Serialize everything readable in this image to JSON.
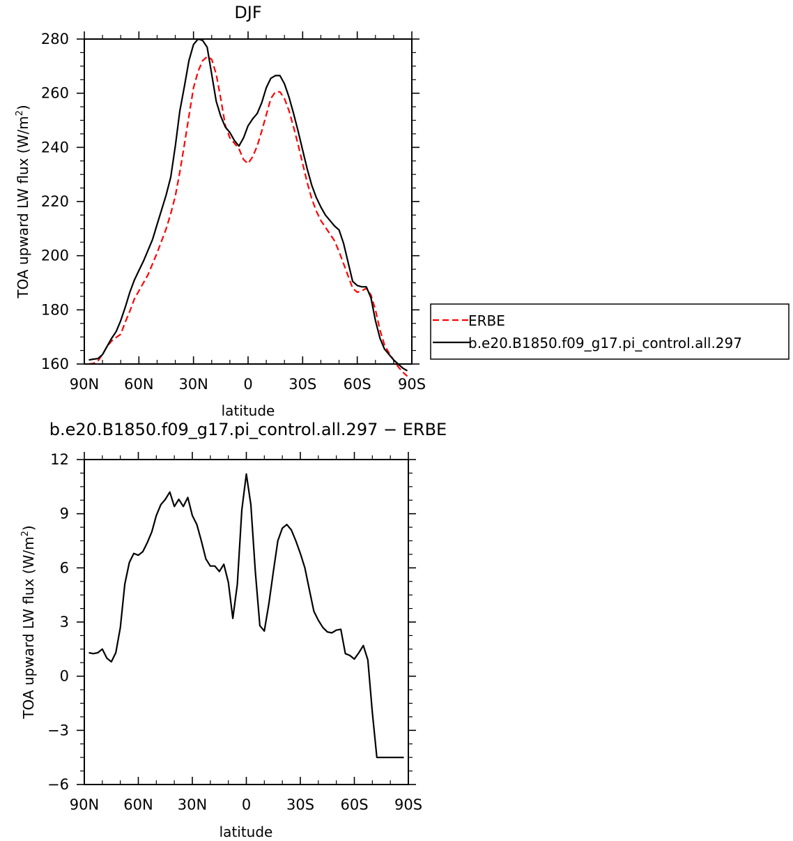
{
  "chart_data": [
    {
      "type": "line",
      "title": "DJF",
      "xlabel": "latitude",
      "ylabel": "TOA upward LW flux (W/m",
      "ylabel_sup": "2",
      "ylabel_tail": ")",
      "xlim": [
        90,
        -90
      ],
      "ylim": [
        160,
        280
      ],
      "xticks": [
        {
          "value": 90,
          "label": "90N"
        },
        {
          "value": 60,
          "label": "60N"
        },
        {
          "value": 30,
          "label": "30N"
        },
        {
          "value": 0,
          "label": "0"
        },
        {
          "value": -30,
          "label": "30S"
        },
        {
          "value": -60,
          "label": "60S"
        },
        {
          "value": -90,
          "label": "90S"
        }
      ],
      "yticks": [
        160,
        180,
        200,
        220,
        240,
        260,
        280
      ],
      "legend": {
        "placement": "right"
      },
      "series": [
        {
          "name": "ERBE",
          "color": "#ff0000",
          "dash": true,
          "x": [
            87.5,
            85,
            82.5,
            80,
            77.5,
            75,
            72.5,
            70,
            67.5,
            65,
            62.5,
            60,
            57.5,
            55,
            52.5,
            50,
            47.5,
            45,
            42.5,
            40,
            37.5,
            35,
            32.5,
            30,
            27.5,
            25,
            22.5,
            20,
            17.5,
            15,
            12.5,
            10,
            7.5,
            5,
            2.5,
            0,
            -2.5,
            -5,
            -7.5,
            -10,
            -12.5,
            -15,
            -17.5,
            -20,
            -22.5,
            -25,
            -27.5,
            -30,
            -32.5,
            -35,
            -37.5,
            -40,
            -42.5,
            -45,
            -47.5,
            -50,
            -52.5,
            -55,
            -57.5,
            -60,
            -62.5,
            -65,
            -67.5,
            -70,
            -72.5,
            -75,
            -77.5,
            -80,
            -82.5,
            -85,
            -87.5
          ],
          "values": [
            160.0,
            160.2,
            161.2,
            163.5,
            166.5,
            168.5,
            169.8,
            171.0,
            175.5,
            179.5,
            184.0,
            187.0,
            190.0,
            193.0,
            197.0,
            201.0,
            205.5,
            210.0,
            215.5,
            222.0,
            231.0,
            241.0,
            251.5,
            262.0,
            268.0,
            272.0,
            273.5,
            272.5,
            267.0,
            258.0,
            248.0,
            243.5,
            241.5,
            239.5,
            235.5,
            234.0,
            236.5,
            240.5,
            246.0,
            252.0,
            258.0,
            260.5,
            260.5,
            258.0,
            253.5,
            247.5,
            241.0,
            234.0,
            227.0,
            221.0,
            216.5,
            213.0,
            210.5,
            208.0,
            205.5,
            201.5,
            197.0,
            192.5,
            188.0,
            186.5,
            187.0,
            188.0,
            185.5,
            180.0,
            172.5,
            167.0,
            164.0,
            161.5,
            159.0,
            157.0,
            155.5
          ]
        },
        {
          "name": "b.e20.B1850.f09_g17.pi_control.all.297",
          "color": "#000000",
          "dash": false,
          "x": [
            87.5,
            85,
            82.5,
            80,
            77.5,
            75,
            72.5,
            70,
            67.5,
            65,
            62.5,
            60,
            57.5,
            55,
            52.5,
            50,
            47.5,
            45,
            42.5,
            40,
            37.5,
            35,
            32.5,
            30,
            27.5,
            25,
            22.5,
            20,
            17.5,
            15,
            12.5,
            10,
            7.5,
            5,
            2.5,
            0,
            -2.5,
            -5,
            -7.5,
            -10,
            -12.5,
            -15,
            -17.5,
            -20,
            -22.5,
            -25,
            -27.5,
            -30,
            -32.5,
            -35,
            -37.5,
            -40,
            -42.5,
            -45,
            -47.5,
            -50,
            -52.5,
            -55,
            -57.5,
            -60,
            -62.5,
            -65,
            -67.5,
            -70,
            -72.5,
            -75,
            -77.5,
            -80,
            -82.5,
            -85,
            -87.5
          ],
          "values": [
            161.5,
            161.8,
            162.0,
            163.5,
            166.5,
            169.5,
            172.0,
            176.0,
            181.0,
            186.5,
            191.0,
            194.5,
            198.0,
            202.0,
            206.0,
            211.5,
            217.0,
            222.5,
            229.0,
            240.5,
            253.5,
            262.5,
            272.0,
            278.0,
            280.0,
            279.5,
            277.0,
            267.0,
            257.0,
            251.5,
            247.5,
            245.5,
            242.5,
            240.5,
            243.5,
            248.0,
            250.5,
            252.5,
            256.5,
            262.0,
            265.5,
            266.5,
            266.5,
            263.5,
            258.5,
            252.5,
            246.0,
            239.0,
            232.0,
            226.0,
            221.5,
            218.0,
            215.0,
            213.0,
            211.0,
            209.5,
            204.5,
            197.5,
            190.5,
            189.0,
            188.5,
            188.5,
            184.5,
            176.0,
            169.5,
            165.5,
            163.5,
            161.5,
            160.0,
            158.5,
            157.5
          ]
        }
      ]
    },
    {
      "type": "line",
      "title": "b.e20.B1850.f09_g17.pi_control.all.297 − ERBE",
      "xlabel": "latitude",
      "ylabel": "TOA upward LW flux (W/m",
      "ylabel_sup": "2",
      "ylabel_tail": ")",
      "xlim": [
        90,
        -90
      ],
      "ylim": [
        -6,
        12
      ],
      "xticks": [
        {
          "value": 90,
          "label": "90N"
        },
        {
          "value": 60,
          "label": "60N"
        },
        {
          "value": 30,
          "label": "30N"
        },
        {
          "value": 0,
          "label": "0"
        },
        {
          "value": -30,
          "label": "30S"
        },
        {
          "value": -60,
          "label": "60S"
        },
        {
          "value": -90,
          "label": "90S"
        }
      ],
      "yticks": [
        -6,
        -3,
        0,
        3,
        6,
        9,
        12
      ],
      "series": [
        {
          "color": "#000000",
          "x": [
            87.5,
            85,
            82.5,
            80,
            77.5,
            75,
            72.5,
            70,
            67.5,
            65,
            62.5,
            60,
            57.5,
            55,
            52.5,
            50,
            47.5,
            45,
            42.5,
            40,
            37.5,
            35,
            32.5,
            30,
            27.5,
            25,
            22.5,
            20,
            17.5,
            15,
            12.5,
            10,
            7.5,
            5,
            2.5,
            0,
            -2.5,
            -5,
            -7.5,
            -10,
            -12.5,
            -15,
            -17.5,
            -20,
            -22.5,
            -25,
            -27.5,
            -30,
            -32.5,
            -35,
            -37.5,
            -40,
            -42.5,
            -45,
            -47.5,
            -50,
            -52.5,
            -55,
            -57.5,
            -60,
            -62.5,
            -65,
            -67.5,
            -70,
            -72.5,
            -75,
            -77.5,
            -80,
            -82.5,
            -85,
            -87.5
          ],
          "values": [
            1.3,
            1.25,
            1.3,
            1.5,
            1.0,
            0.8,
            1.3,
            2.7,
            5.1,
            6.3,
            6.8,
            6.7,
            6.9,
            7.4,
            8.0,
            8.9,
            9.5,
            9.8,
            10.2,
            9.4,
            9.8,
            9.4,
            9.9,
            8.9,
            8.4,
            7.5,
            6.5,
            6.1,
            6.1,
            5.8,
            6.2,
            5.2,
            3.2,
            5.1,
            9.2,
            11.2,
            9.5,
            5.8,
            2.8,
            2.5,
            4.0,
            5.8,
            7.5,
            8.2,
            8.4,
            8.1,
            7.5,
            6.8,
            6.0,
            4.8,
            3.6,
            3.1,
            2.7,
            2.45,
            2.4,
            2.55,
            2.6,
            1.25,
            1.15,
            0.95,
            1.3,
            1.7,
            0.9,
            -2.0,
            -4.5,
            -4.5,
            -4.5,
            -4.5,
            -4.5,
            -4.5,
            -4.5
          ]
        }
      ]
    }
  ],
  "legend_line_labels": [
    "ERBE",
    "b.e20.B1850.f09_g17.pi_control.all.297"
  ]
}
